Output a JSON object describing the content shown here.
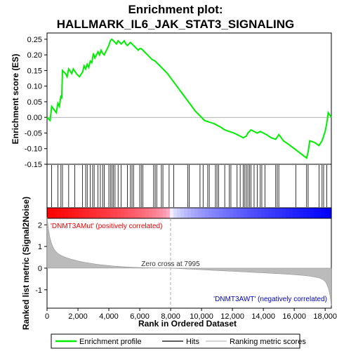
{
  "chart_data": {
    "type": "line",
    "title_line1": "Enrichment plot:",
    "title_line2": "HALLMARK_IL6_JAK_STAT3_SIGNALING",
    "top_panel": {
      "ylabel": "Enrichment score (ES)",
      "ylim": [
        -0.15,
        0.27
      ],
      "yticks": [
        "0.25",
        "0.20",
        "0.15",
        "0.10",
        "0.05",
        "0.00",
        "-0.05",
        "-0.10",
        "-0.15"
      ],
      "ytick_values": [
        0.25,
        0.2,
        0.15,
        0.1,
        0.05,
        0.0,
        -0.05,
        -0.1,
        -0.15
      ],
      "series": [
        {
          "name": "Enrichment profile",
          "color": "#00ee00",
          "x": [
            0,
            200,
            300,
            450,
            600,
            700,
            800,
            900,
            950,
            1000,
            1200,
            1300,
            1400,
            1600,
            1700,
            1900,
            2100,
            2300,
            2400,
            2500,
            2600,
            2700,
            2800,
            2900,
            3000,
            3100,
            3200,
            3300,
            3400,
            3500,
            3600,
            3700,
            3800,
            3900,
            4000,
            4100,
            4200,
            4300,
            4400,
            4500,
            4600,
            4700,
            4800,
            4900,
            5000,
            5100,
            5200,
            5300,
            5400,
            5500,
            5600,
            5700,
            5800,
            5900,
            6000,
            6100,
            6200,
            6500,
            6800,
            7000,
            7200,
            7500,
            7800,
            8100,
            8400,
            8700,
            9000,
            9300,
            9600,
            9900,
            10200,
            10500,
            10800,
            11000,
            11200,
            11500,
            11800,
            12100,
            12300,
            12500,
            12700,
            12900,
            13000,
            13100,
            13200,
            13400,
            13600,
            13800,
            14000,
            14200,
            14500,
            14800,
            15000,
            15300,
            15600,
            16000,
            16400,
            16800,
            16900,
            17000,
            17300,
            17600,
            17800,
            17900,
            18000,
            18100,
            18200,
            18400
          ],
          "y": [
            0.0,
            -0.01,
            0.035,
            0.025,
            0.015,
            0.045,
            0.035,
            0.07,
            0.06,
            0.15,
            0.14,
            0.13,
            0.155,
            0.14,
            0.155,
            0.14,
            0.13,
            0.145,
            0.165,
            0.155,
            0.17,
            0.16,
            0.18,
            0.175,
            0.205,
            0.19,
            0.2,
            0.21,
            0.2,
            0.215,
            0.205,
            0.2,
            0.21,
            0.22,
            0.23,
            0.245,
            0.25,
            0.245,
            0.24,
            0.235,
            0.245,
            0.24,
            0.235,
            0.24,
            0.245,
            0.235,
            0.23,
            0.235,
            0.24,
            0.235,
            0.23,
            0.225,
            0.22,
            0.215,
            0.22,
            0.22,
            0.215,
            0.2,
            0.185,
            0.18,
            0.17,
            0.155,
            0.14,
            0.12,
            0.1,
            0.08,
            0.06,
            0.04,
            0.02,
            0.005,
            -0.01,
            -0.015,
            -0.02,
            -0.025,
            -0.03,
            -0.04,
            -0.045,
            -0.05,
            -0.055,
            -0.06,
            -0.065,
            -0.06,
            -0.05,
            -0.045,
            -0.04,
            -0.045,
            -0.05,
            -0.045,
            -0.05,
            -0.055,
            -0.065,
            -0.07,
            -0.055,
            -0.075,
            -0.085,
            -0.1,
            -0.115,
            -0.13,
            -0.11,
            -0.075,
            -0.08,
            -0.09,
            -0.075,
            -0.06,
            -0.045,
            -0.02,
            0.015,
            0.0
          ]
        }
      ]
    },
    "hits_x": [
      300,
      700,
      900,
      1000,
      1400,
      1800,
      2300,
      2500,
      2600,
      2800,
      2950,
      3050,
      3300,
      3450,
      3600,
      3700,
      4000,
      4100,
      4200,
      4300,
      4400,
      4600,
      4800,
      5200,
      5400,
      5500,
      5600,
      6000,
      6100,
      6200,
      6900,
      7000,
      7100,
      7400,
      7500,
      7900,
      8200,
      9100,
      9200,
      9900,
      10100,
      10400,
      10500,
      10900,
      11000,
      11100,
      11500,
      11800,
      11900,
      12300,
      12500,
      12700,
      12800,
      12900,
      13000,
      13100,
      13200,
      13400,
      13600,
      13800,
      13900,
      14100,
      14800,
      14900,
      15000,
      16100,
      16800,
      16900,
      17600,
      17800,
      17900,
      18100
    ],
    "zero_cross_label": "Zero cross at 7995",
    "zero_cross_x": 7995,
    "pos_label": "'DNMT3AMut' (positively correlated)",
    "neg_label": "'DNMT3AWT' (negatively correlated)",
    "bottom_panel": {
      "ylabel_line1": "Ranked list metric (Signal2Noise)",
      "ylim": [
        -1.85,
        2.3
      ],
      "yticks": [
        "2",
        "1",
        "0",
        "-1"
      ],
      "ytick_values": [
        2,
        1,
        0,
        -1
      ]
    },
    "xlabel": "Rank in Ordered Dataset",
    "xlim": [
      0,
      18400
    ],
    "xticks": [
      "0",
      "2,000",
      "4,000",
      "6,000",
      "8,000",
      "10,000",
      "12,000",
      "14,000",
      "16,000",
      "18,000"
    ],
    "xtick_values": [
      0,
      2000,
      4000,
      6000,
      8000,
      10000,
      12000,
      14000,
      16000,
      18000
    ],
    "legend": {
      "profile": "Enrichment profile",
      "hits": "Hits",
      "metric": "Ranking metric scores"
    },
    "colors": {
      "profile": "#00ee00",
      "pos_text": "#ee0000",
      "neg_text": "#0000cc",
      "metric_fill": "#bbbbbb"
    }
  }
}
